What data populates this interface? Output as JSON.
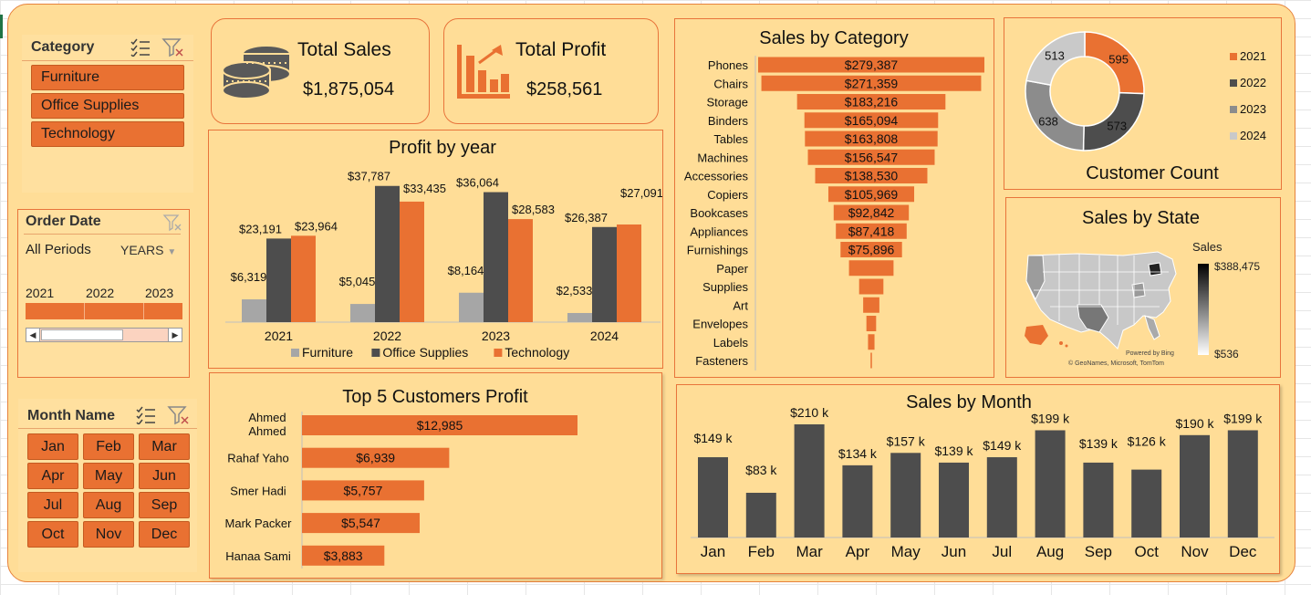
{
  "slicers": {
    "category": {
      "title": "Category",
      "items": [
        "Furniture",
        "Office Supplies",
        "Technology"
      ]
    },
    "order_date": {
      "title": "Order Date",
      "periods_label": "All Periods",
      "level_label": "YEARS",
      "years": [
        "2021",
        "2022",
        "2023"
      ]
    },
    "month": {
      "title": "Month Name",
      "items": [
        "Jan",
        "Feb",
        "Mar",
        "Apr",
        "May",
        "Jun",
        "Jul",
        "Aug",
        "Sep",
        "Oct",
        "Nov",
        "Dec"
      ]
    }
  },
  "kpis": {
    "sales": {
      "title": "Total Sales",
      "value": "$1,875,054"
    },
    "profit": {
      "title": "Total Profit",
      "value": "$258,561"
    }
  },
  "colors": {
    "accent": "#e97132",
    "dark": "#4d4d4d",
    "gray": "#a6a6a6",
    "background": "#ffdd97"
  },
  "chart_data": [
    {
      "id": "profit_by_year",
      "type": "bar",
      "title": "Profit by year",
      "categories": [
        "2021",
        "2022",
        "2023",
        "2024"
      ],
      "series": [
        {
          "name": "Furniture",
          "color": "#a6a6a6",
          "values": [
            6319,
            5045,
            8164,
            2533
          ],
          "labels": [
            "$6,319",
            "$5,045",
            "$8,164",
            "$2,533"
          ]
        },
        {
          "name": "Office Supplies",
          "color": "#4d4d4d",
          "values": [
            23191,
            37787,
            36064,
            26387
          ],
          "labels": [
            "$23,191",
            "$37,787",
            "$36,064",
            "$26,387"
          ]
        },
        {
          "name": "Technology",
          "color": "#e97132",
          "values": [
            23964,
            33435,
            28583,
            27091
          ],
          "labels": [
            "$23,964",
            "$33,435",
            "$28,583",
            "$27,091"
          ]
        }
      ],
      "legend": "bottom",
      "ylim": [
        0,
        40000
      ]
    },
    {
      "id": "sales_by_category",
      "type": "bar",
      "orientation": "horizontal-funnel",
      "title": "Sales by Category",
      "categories": [
        "Phones",
        "Chairs",
        "Storage",
        "Binders",
        "Tables",
        "Machines",
        "Accessories",
        "Copiers",
        "Bookcases",
        "Appliances",
        "Furnishings",
        "Paper",
        "Supplies",
        "Art",
        "Envelopes",
        "Labels",
        "Fasteners"
      ],
      "values": [
        279387,
        271359,
        183216,
        165094,
        163808,
        156547,
        138530,
        105969,
        92842,
        87418,
        75896,
        55000,
        30000,
        20000,
        12000,
        8000,
        1000
      ],
      "labels": [
        "$279,387",
        "$271,359",
        "$183,216",
        "$165,094",
        "$163,808",
        "$156,547",
        "$138,530",
        "$105,969",
        "$92,842",
        "$87,418",
        "$75,896",
        "",
        "",
        "",
        "",
        "",
        ""
      ]
    },
    {
      "id": "customer_count",
      "type": "pie",
      "title": "Customer Count",
      "categories": [
        "2021",
        "2022",
        "2023",
        "2024"
      ],
      "values": [
        595,
        573,
        638,
        513
      ],
      "colors": [
        "#e97132",
        "#4d4d4d",
        "#8c8c8c",
        "#c9c9c9"
      ],
      "legend": "right"
    },
    {
      "id": "top5_customers_profit",
      "type": "bar",
      "orientation": "horizontal",
      "title": "Top 5 Customers Profit",
      "categories": [
        "Ahmed Ahmed",
        "Rahaf Yaho",
        "Smer Hadi",
        "Mark Packer",
        "Hanaa Sami"
      ],
      "values": [
        12985,
        6939,
        5757,
        5547,
        3883
      ],
      "labels": [
        "$12,985",
        "$6,939",
        "$5,757",
        "$5,547",
        "$3,883"
      ]
    },
    {
      "id": "sales_by_month",
      "type": "bar",
      "title": "Sales by Month",
      "categories": [
        "Jan",
        "Feb",
        "Mar",
        "Apr",
        "May",
        "Jun",
        "Jul",
        "Aug",
        "Sep",
        "Oct",
        "Nov",
        "Dec"
      ],
      "values": [
        149,
        83,
        210,
        134,
        157,
        139,
        149,
        199,
        139,
        126,
        190,
        199
      ],
      "labels": [
        "$149 k",
        "$83 k",
        "$210 k",
        "$134 k",
        "$157 k",
        "$139 k",
        "$149 k",
        "$199 k",
        "$139 k",
        "$126 k",
        "$190 k",
        "$199 k"
      ],
      "unit": "k"
    }
  ],
  "map": {
    "title": "Sales by State",
    "legend_title": "Sales",
    "max_label": "$388,475",
    "min_label": "$536",
    "credit_1": "Powered by Bing",
    "credit_2": "© GeoNames, Microsoft, TomTom"
  }
}
